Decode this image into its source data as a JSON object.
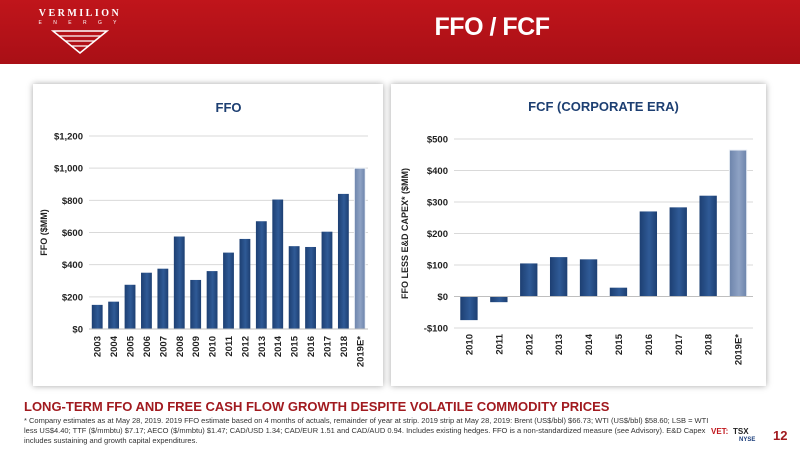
{
  "header": {
    "title": "FFO / FCF",
    "logo_name": "VERMILION",
    "logo_sub": "E N E R G Y",
    "colors": {
      "brand_red": "#b3131a",
      "bar_dark": "#1d3f72",
      "bar_est": "#6d84ab"
    }
  },
  "chart_data": [
    {
      "type": "bar",
      "title": "FFO",
      "ylabel": "FFO ($MM)",
      "xlabel": "",
      "categories": [
        "2003",
        "2004",
        "2005",
        "2006",
        "2007",
        "2008",
        "2009",
        "2010",
        "2011",
        "2012",
        "2013",
        "2014",
        "2015",
        "2016",
        "2017",
        "2018",
        "2019E*"
      ],
      "values": [
        150,
        170,
        275,
        350,
        375,
        575,
        305,
        360,
        475,
        560,
        670,
        805,
        515,
        510,
        605,
        840,
        1000
      ],
      "estimate_index": 16,
      "ylim": [
        0,
        1200
      ],
      "yticks": [
        0,
        200,
        400,
        600,
        800,
        1000,
        1200
      ],
      "ytick_labels": [
        "$0",
        "$200",
        "$400",
        "$600",
        "$800",
        "$1,000",
        "$1,200"
      ],
      "grid": true
    },
    {
      "type": "bar",
      "title": "FCF (CORPORATE ERA)",
      "ylabel": "FFO LESS E&D CAPEX* ($MM)",
      "xlabel": "",
      "categories": [
        "2010",
        "2011",
        "2012",
        "2013",
        "2014",
        "2015",
        "2016",
        "2017",
        "2018",
        "2019E*"
      ],
      "values": [
        -75,
        -18,
        105,
        125,
        118,
        28,
        270,
        283,
        320,
        465
      ],
      "estimate_index": 9,
      "ylim": [
        -100,
        500
      ],
      "yticks": [
        -100,
        0,
        100,
        200,
        300,
        400,
        500
      ],
      "ytick_labels": [
        "-$100",
        "$0",
        "$100",
        "$200",
        "$300",
        "$400",
        "$500"
      ],
      "grid": true
    }
  ],
  "tagline": "LONG-TERM FFO AND FREE CASH FLOW GROWTH DESPITE VOLATILE COMMODITY PRICES",
  "footnote": "* Company estimates as at May 28, 2019. 2019 FFO estimate based on 4 months of actuals, remainder of year at strip. 2019 strip at May 28, 2019: Brent (US$/bbl) $66.73; WTI (US$/bbl) $58.60; LSB = WTI less US$4.40; TTF ($/mmbtu) $7.17; AECO ($/mmbtu) $1.47; CAD/USD 1.34; CAD/EUR 1.51 and CAD/AUD 0.94. Includes existing hedges. FFO is a non-standardized measure (see Advisory). E&D Capex includes sustaining and growth capital expenditures.",
  "footer": {
    "vet": "VET:",
    "tsx": "TSX",
    "nyse": "NYSE",
    "page_number": "12"
  }
}
